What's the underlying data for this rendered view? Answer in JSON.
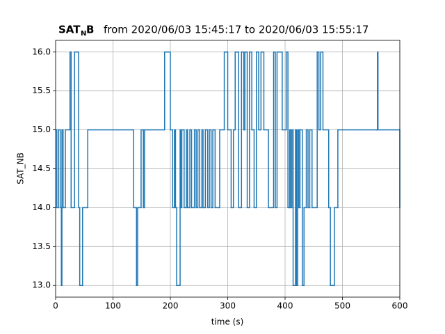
{
  "chart_data": {
    "type": "step",
    "title_bold": "SAT",
    "title_subscript": "N",
    "title_bold_end": "B",
    "title": "from 2020/06/03 15:45:17 to 2020/06/03 15:55:17",
    "x_label": "time (s)",
    "y_label": "SAT_NB",
    "xlim": [
      0,
      600
    ],
    "ylim": [
      12.85,
      16.15
    ],
    "xticks": [
      0,
      100,
      200,
      300,
      400,
      500,
      600
    ],
    "yticks": [
      {
        "value": 13,
        "label": "13.0"
      },
      {
        "value": 13.5,
        "label": "13.5"
      },
      {
        "value": 14,
        "label": "14.0"
      },
      {
        "value": 14.5,
        "label": "14.5"
      },
      {
        "value": 15,
        "label": "15.0"
      },
      {
        "value": 15.5,
        "label": "15.5"
      },
      {
        "value": 16,
        "label": "16.0"
      }
    ],
    "grid": true,
    "color": "#1f77b4",
    "x": [
      0,
      2,
      5,
      8,
      10,
      11,
      13,
      17,
      25,
      27,
      33,
      40,
      42,
      47,
      56,
      136,
      141,
      143,
      149,
      153,
      155,
      190,
      200,
      204,
      207,
      209,
      211,
      217,
      218,
      220,
      224,
      228,
      230,
      234,
      237,
      242,
      245,
      248,
      251,
      255,
      257,
      261,
      265,
      268,
      271,
      274,
      278,
      286,
      294,
      300,
      306,
      310,
      313,
      319,
      324,
      328,
      330,
      334,
      338,
      342,
      346,
      350,
      354,
      358,
      363,
      371,
      380,
      383,
      386,
      395,
      402,
      405,
      408,
      410,
      412,
      414,
      418,
      420,
      422,
      424,
      426,
      430,
      433,
      437,
      440,
      443,
      447,
      456,
      459,
      462,
      466,
      476,
      479,
      486,
      492,
      560,
      561,
      562,
      600
    ],
    "values": [
      15,
      14,
      15,
      14,
      13,
      15,
      14,
      15,
      16,
      14,
      16,
      14,
      13,
      14,
      15,
      14,
      13,
      14,
      15,
      14,
      15,
      16,
      15,
      14,
      15,
      14,
      13,
      15,
      14,
      15,
      14,
      15,
      14,
      15,
      14,
      15,
      14,
      15,
      14,
      15,
      14,
      15,
      14,
      15,
      14,
      15,
      14,
      15,
      16,
      15,
      14,
      15,
      16,
      14,
      16,
      15,
      16,
      14,
      16,
      15,
      14,
      16,
      15,
      16,
      15,
      14,
      16,
      14,
      16,
      15,
      16,
      14,
      15,
      14,
      15,
      13,
      15,
      13,
      15,
      14,
      15,
      13,
      14,
      15,
      14,
      15,
      14,
      16,
      15,
      16,
      15,
      14,
      13,
      14,
      15,
      15,
      16,
      15,
      14
    ]
  }
}
